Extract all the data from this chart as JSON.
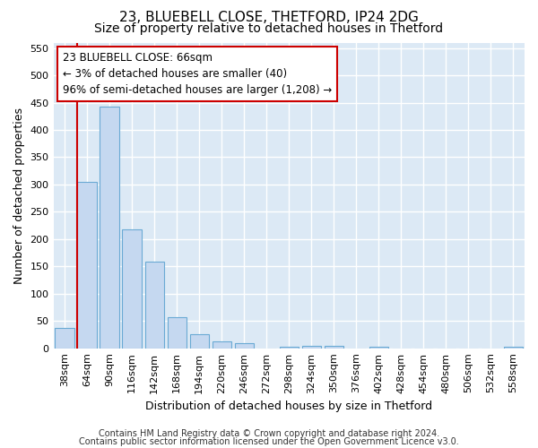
{
  "title": "23, BLUEBELL CLOSE, THETFORD, IP24 2DG",
  "subtitle": "Size of property relative to detached houses in Thetford",
  "xlabel": "Distribution of detached houses by size in Thetford",
  "ylabel": "Number of detached properties",
  "footnote1": "Contains HM Land Registry data © Crown copyright and database right 2024.",
  "footnote2": "Contains public sector information licensed under the Open Government Licence v3.0.",
  "bar_labels": [
    "38sqm",
    "64sqm",
    "90sqm",
    "116sqm",
    "142sqm",
    "168sqm",
    "194sqm",
    "220sqm",
    "246sqm",
    "272sqm",
    "298sqm",
    "324sqm",
    "350sqm",
    "376sqm",
    "402sqm",
    "428sqm",
    "454sqm",
    "480sqm",
    "506sqm",
    "532sqm",
    "558sqm"
  ],
  "bar_values": [
    37,
    304,
    443,
    217,
    158,
    57,
    25,
    12,
    9,
    0,
    3,
    5,
    5,
    0,
    3,
    0,
    0,
    0,
    0,
    0,
    3
  ],
  "bar_color": "#c5d8f0",
  "bar_edge_color": "#6aaad4",
  "vline_x_bar": 1,
  "vline_color": "#cc0000",
  "annotation_text": "23 BLUEBELL CLOSE: 66sqm\n← 3% of detached houses are smaller (40)\n96% of semi-detached houses are larger (1,208) →",
  "annotation_box_facecolor": "#ffffff",
  "annotation_box_edgecolor": "#cc0000",
  "ylim": [
    0,
    560
  ],
  "yticks": [
    0,
    50,
    100,
    150,
    200,
    250,
    300,
    350,
    400,
    450,
    500,
    550
  ],
  "fig_bg_color": "#ffffff",
  "plot_bg_color": "#dce9f5",
  "grid_color": "#ffffff",
  "title_fontsize": 11,
  "subtitle_fontsize": 10,
  "ylabel_fontsize": 9,
  "xlabel_fontsize": 9,
  "tick_fontsize": 8,
  "annotation_fontsize": 8.5,
  "footnote_fontsize": 7
}
